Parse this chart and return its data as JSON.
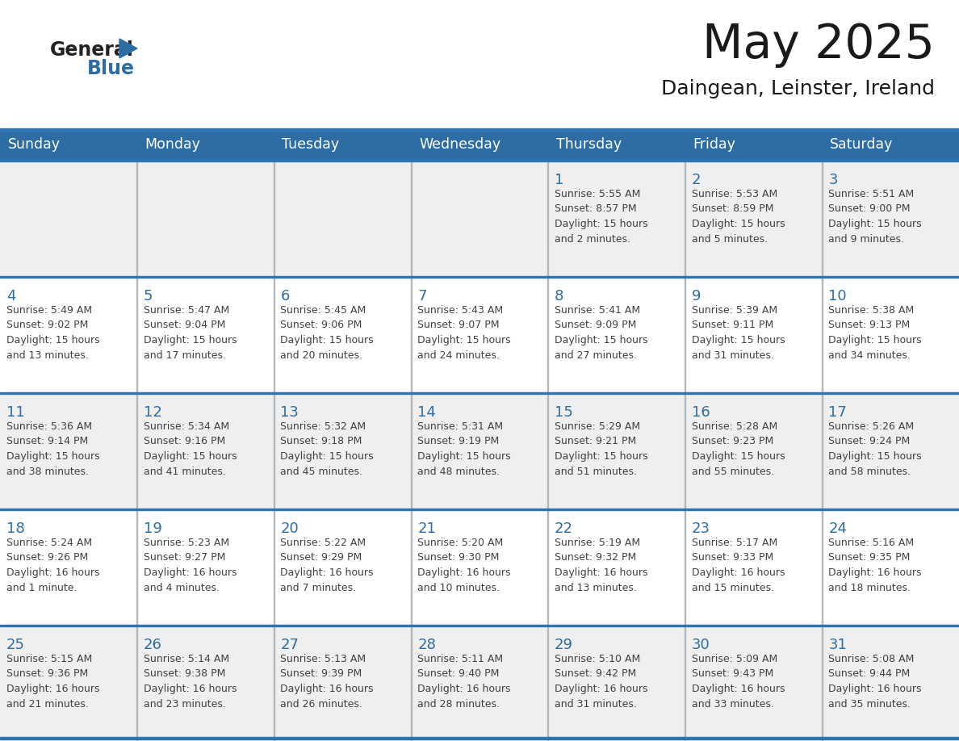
{
  "title": "May 2025",
  "subtitle": "Daingean, Leinster, Ireland",
  "days_of_week": [
    "Sunday",
    "Monday",
    "Tuesday",
    "Wednesday",
    "Thursday",
    "Friday",
    "Saturday"
  ],
  "header_bg": "#2E6DA4",
  "header_text": "#FFFFFF",
  "row_bg_odd": "#EFEFEF",
  "row_bg_even": "#FFFFFF",
  "separator_color": "#2E75B6",
  "day_num_color": "#2E6DA4",
  "cell_text_color": "#404040",
  "title_color": "#1a1a1a",
  "logo_general_color": "#222222",
  "logo_blue_color": "#2E6DA4",
  "figsize": [
    11.88,
    9.18
  ],
  "dpi": 100,
  "weeks": [
    {
      "days": [
        {
          "day": null,
          "info": ""
        },
        {
          "day": null,
          "info": ""
        },
        {
          "day": null,
          "info": ""
        },
        {
          "day": null,
          "info": ""
        },
        {
          "day": 1,
          "info": "Sunrise: 5:55 AM\nSunset: 8:57 PM\nDaylight: 15 hours\nand 2 minutes."
        },
        {
          "day": 2,
          "info": "Sunrise: 5:53 AM\nSunset: 8:59 PM\nDaylight: 15 hours\nand 5 minutes."
        },
        {
          "day": 3,
          "info": "Sunrise: 5:51 AM\nSunset: 9:00 PM\nDaylight: 15 hours\nand 9 minutes."
        }
      ]
    },
    {
      "days": [
        {
          "day": 4,
          "info": "Sunrise: 5:49 AM\nSunset: 9:02 PM\nDaylight: 15 hours\nand 13 minutes."
        },
        {
          "day": 5,
          "info": "Sunrise: 5:47 AM\nSunset: 9:04 PM\nDaylight: 15 hours\nand 17 minutes."
        },
        {
          "day": 6,
          "info": "Sunrise: 5:45 AM\nSunset: 9:06 PM\nDaylight: 15 hours\nand 20 minutes."
        },
        {
          "day": 7,
          "info": "Sunrise: 5:43 AM\nSunset: 9:07 PM\nDaylight: 15 hours\nand 24 minutes."
        },
        {
          "day": 8,
          "info": "Sunrise: 5:41 AM\nSunset: 9:09 PM\nDaylight: 15 hours\nand 27 minutes."
        },
        {
          "day": 9,
          "info": "Sunrise: 5:39 AM\nSunset: 9:11 PM\nDaylight: 15 hours\nand 31 minutes."
        },
        {
          "day": 10,
          "info": "Sunrise: 5:38 AM\nSunset: 9:13 PM\nDaylight: 15 hours\nand 34 minutes."
        }
      ]
    },
    {
      "days": [
        {
          "day": 11,
          "info": "Sunrise: 5:36 AM\nSunset: 9:14 PM\nDaylight: 15 hours\nand 38 minutes."
        },
        {
          "day": 12,
          "info": "Sunrise: 5:34 AM\nSunset: 9:16 PM\nDaylight: 15 hours\nand 41 minutes."
        },
        {
          "day": 13,
          "info": "Sunrise: 5:32 AM\nSunset: 9:18 PM\nDaylight: 15 hours\nand 45 minutes."
        },
        {
          "day": 14,
          "info": "Sunrise: 5:31 AM\nSunset: 9:19 PM\nDaylight: 15 hours\nand 48 minutes."
        },
        {
          "day": 15,
          "info": "Sunrise: 5:29 AM\nSunset: 9:21 PM\nDaylight: 15 hours\nand 51 minutes."
        },
        {
          "day": 16,
          "info": "Sunrise: 5:28 AM\nSunset: 9:23 PM\nDaylight: 15 hours\nand 55 minutes."
        },
        {
          "day": 17,
          "info": "Sunrise: 5:26 AM\nSunset: 9:24 PM\nDaylight: 15 hours\nand 58 minutes."
        }
      ]
    },
    {
      "days": [
        {
          "day": 18,
          "info": "Sunrise: 5:24 AM\nSunset: 9:26 PM\nDaylight: 16 hours\nand 1 minute."
        },
        {
          "day": 19,
          "info": "Sunrise: 5:23 AM\nSunset: 9:27 PM\nDaylight: 16 hours\nand 4 minutes."
        },
        {
          "day": 20,
          "info": "Sunrise: 5:22 AM\nSunset: 9:29 PM\nDaylight: 16 hours\nand 7 minutes."
        },
        {
          "day": 21,
          "info": "Sunrise: 5:20 AM\nSunset: 9:30 PM\nDaylight: 16 hours\nand 10 minutes."
        },
        {
          "day": 22,
          "info": "Sunrise: 5:19 AM\nSunset: 9:32 PM\nDaylight: 16 hours\nand 13 minutes."
        },
        {
          "day": 23,
          "info": "Sunrise: 5:17 AM\nSunset: 9:33 PM\nDaylight: 16 hours\nand 15 minutes."
        },
        {
          "day": 24,
          "info": "Sunrise: 5:16 AM\nSunset: 9:35 PM\nDaylight: 16 hours\nand 18 minutes."
        }
      ]
    },
    {
      "days": [
        {
          "day": 25,
          "info": "Sunrise: 5:15 AM\nSunset: 9:36 PM\nDaylight: 16 hours\nand 21 minutes."
        },
        {
          "day": 26,
          "info": "Sunrise: 5:14 AM\nSunset: 9:38 PM\nDaylight: 16 hours\nand 23 minutes."
        },
        {
          "day": 27,
          "info": "Sunrise: 5:13 AM\nSunset: 9:39 PM\nDaylight: 16 hours\nand 26 minutes."
        },
        {
          "day": 28,
          "info": "Sunrise: 5:11 AM\nSunset: 9:40 PM\nDaylight: 16 hours\nand 28 minutes."
        },
        {
          "day": 29,
          "info": "Sunrise: 5:10 AM\nSunset: 9:42 PM\nDaylight: 16 hours\nand 31 minutes."
        },
        {
          "day": 30,
          "info": "Sunrise: 5:09 AM\nSunset: 9:43 PM\nDaylight: 16 hours\nand 33 minutes."
        },
        {
          "day": 31,
          "info": "Sunrise: 5:08 AM\nSunset: 9:44 PM\nDaylight: 16 hours\nand 35 minutes."
        }
      ]
    }
  ]
}
